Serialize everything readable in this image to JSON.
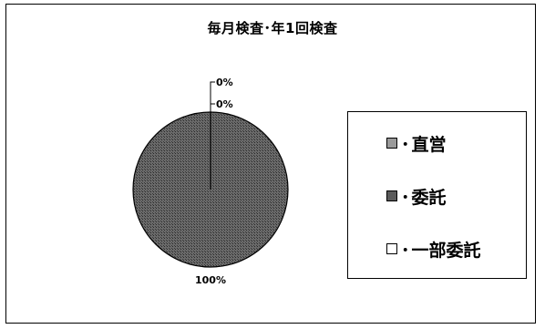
{
  "chart_data": {
    "type": "pie",
    "title": "毎月検査･年1回検査",
    "categories": [
      "直営",
      "委託",
      "一部委託"
    ],
    "values": [
      0,
      100,
      0
    ],
    "data_labels": [
      "0%",
      "100%",
      "0%"
    ],
    "colors": [
      "#9a9a9a",
      "#5a5a5a",
      "#ffffff"
    ],
    "legend_placement": "right",
    "legend_separator": "･"
  }
}
